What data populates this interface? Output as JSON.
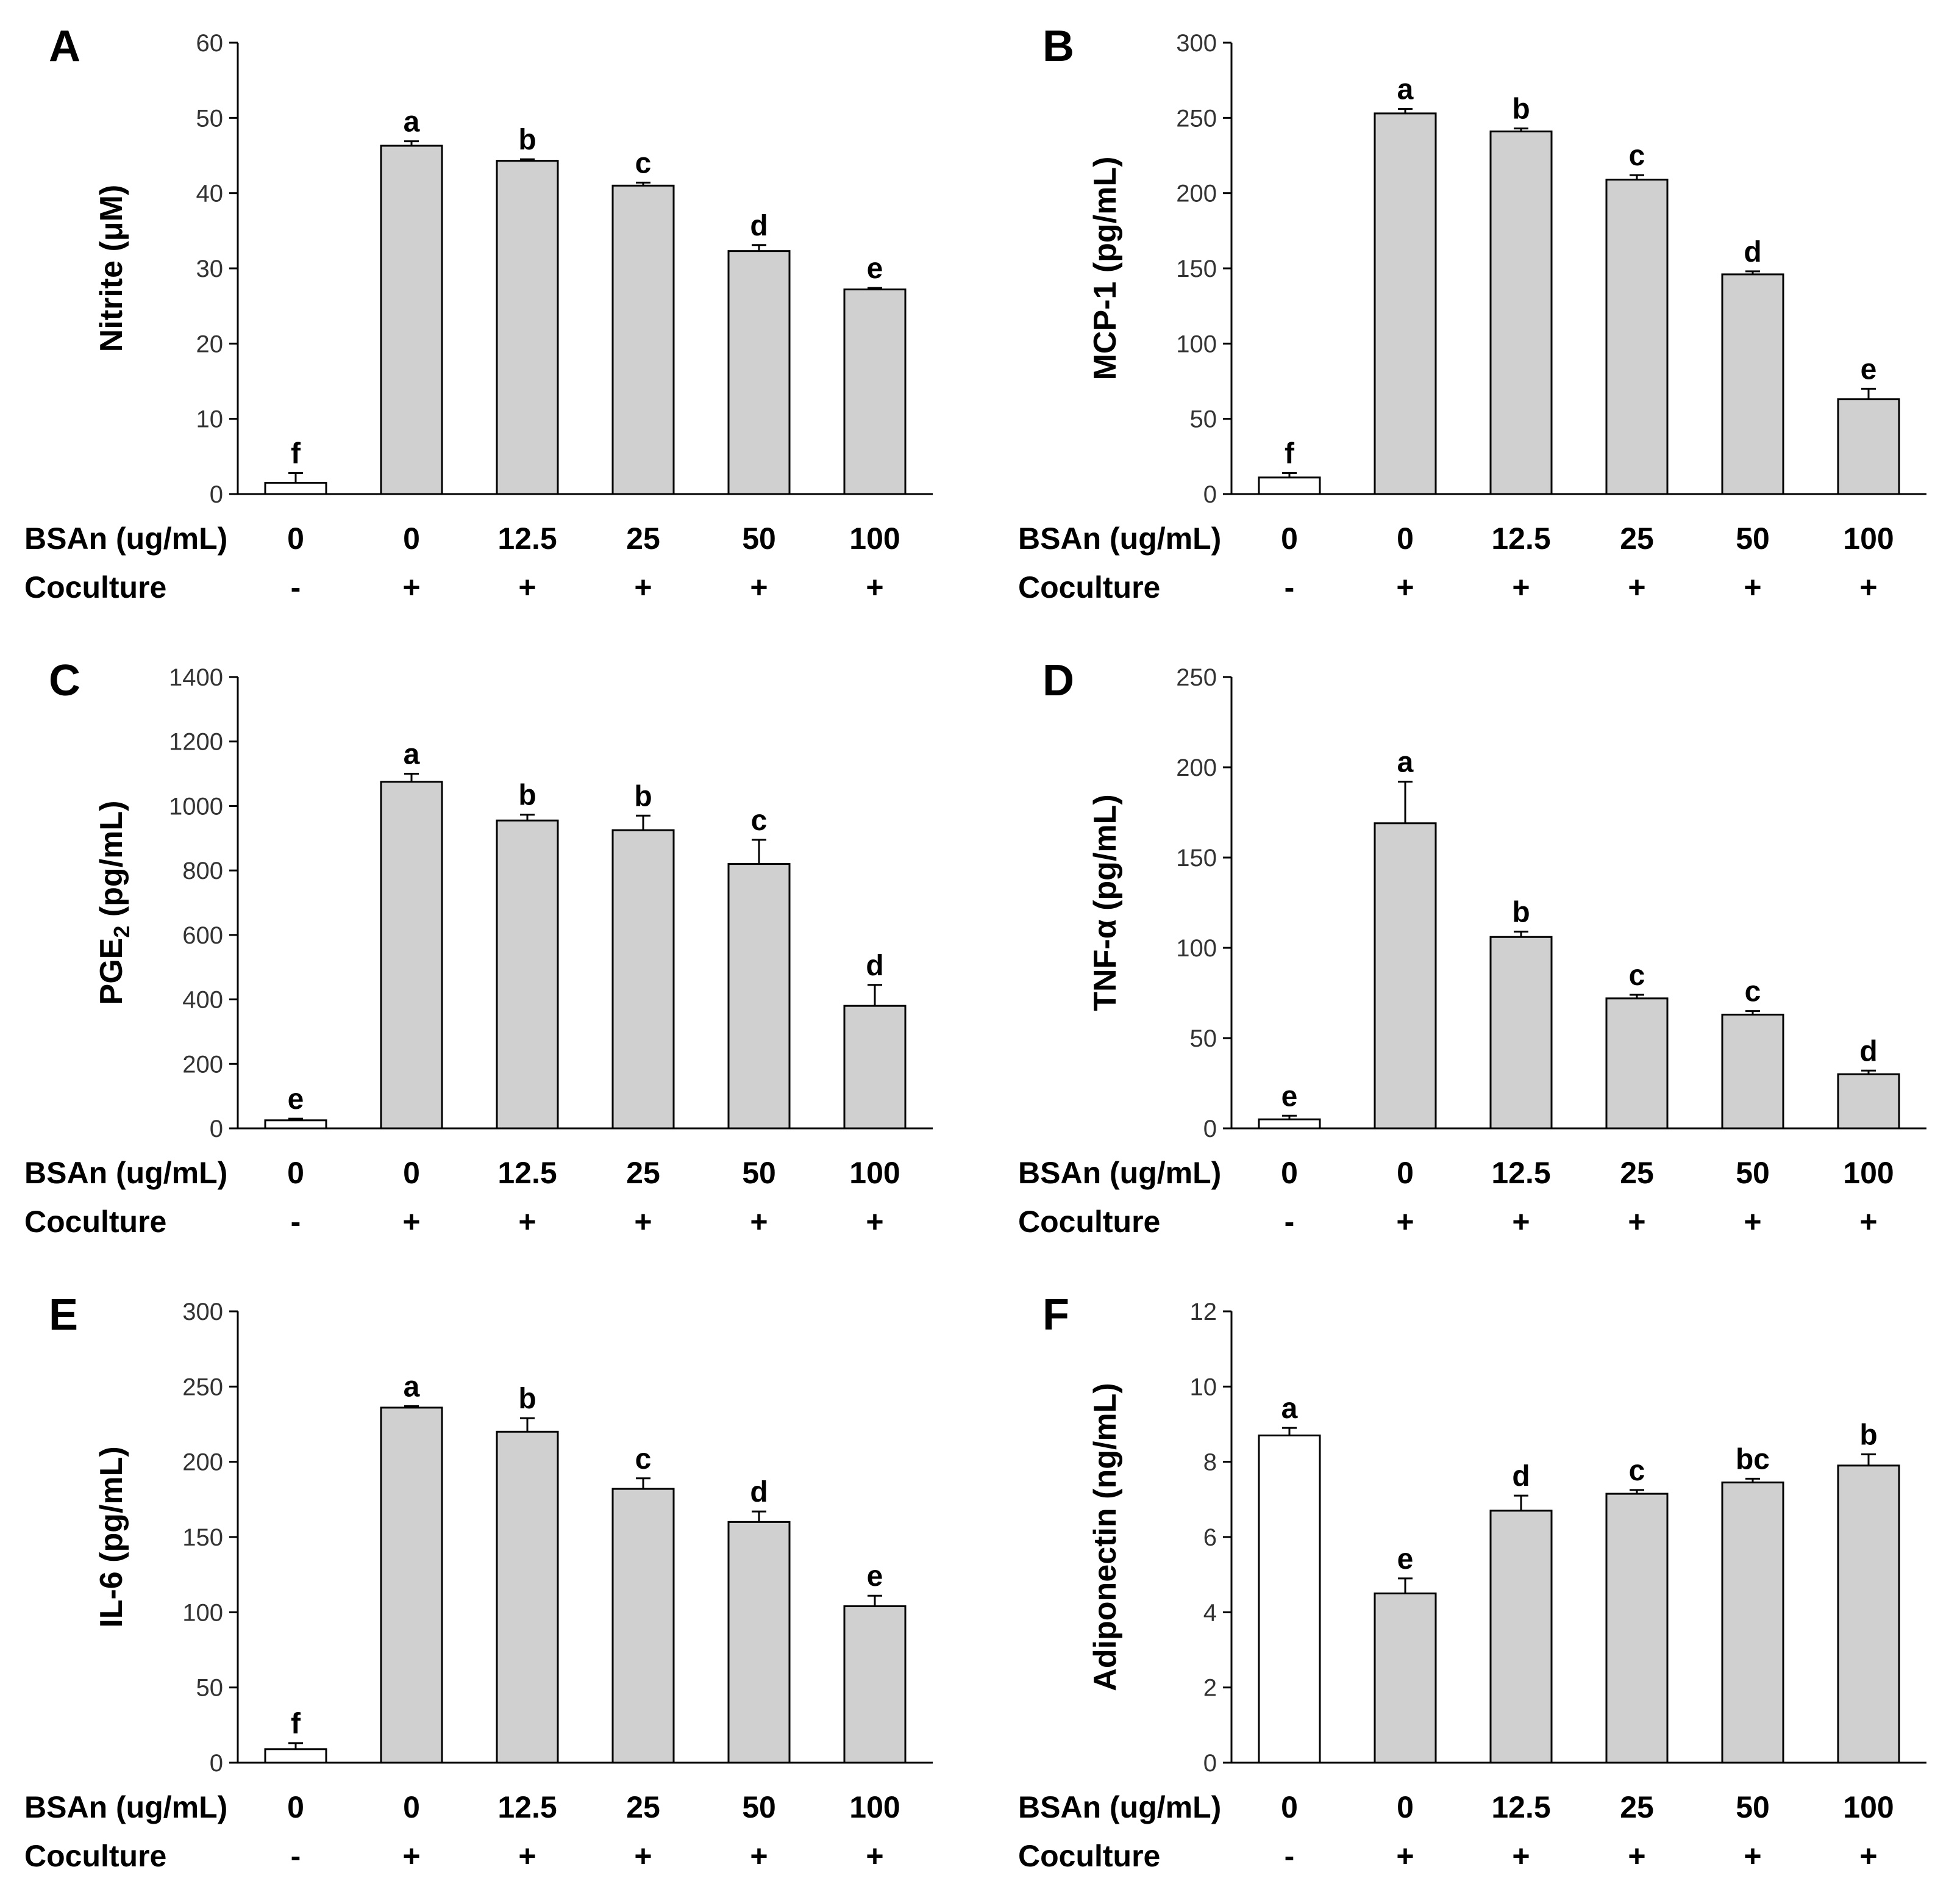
{
  "colors": {
    "control": "#ffffff",
    "treated": "#d0d0d0",
    "stroke": "#000000"
  },
  "chart_data": [
    {
      "type": "bar",
      "panel": "A",
      "ylabel": "Nitrite  (μM)",
      "ylim": [
        0,
        60
      ],
      "yticks": [
        "0",
        "10",
        "20",
        "30",
        "40",
        "50",
        "60"
      ],
      "row1_label": "BSAn (ug/mL)",
      "row2_label": "Coculture",
      "categories": [
        "0",
        "0",
        "12.5",
        "25",
        "50",
        "100"
      ],
      "coculture": [
        "-",
        "+",
        "+",
        "+",
        "+",
        "+"
      ],
      "values": [
        1.5,
        46.3,
        44.3,
        41.0,
        32.3,
        27.2
      ],
      "errors": [
        1.3,
        0.6,
        0.2,
        0.4,
        0.8,
        0.2
      ],
      "significance": [
        "f",
        "a",
        "b",
        "c",
        "d",
        "e"
      ],
      "colors": [
        "#ffffff",
        "#d0d0d0",
        "#d0d0d0",
        "#d0d0d0",
        "#d0d0d0",
        "#d0d0d0"
      ]
    },
    {
      "type": "bar",
      "panel": "B",
      "ylabel": "MCP-1 (pg/mL)",
      "ylim": [
        0,
        300
      ],
      "yticks": [
        "0",
        "50",
        "100",
        "150",
        "200",
        "250",
        "300"
      ],
      "row1_label": "BSAn (ug/mL)",
      "row2_label": "Coculture",
      "categories": [
        "0",
        "0",
        "12.5",
        "25",
        "50",
        "100"
      ],
      "coculture": [
        "-",
        "+",
        "+",
        "+",
        "+",
        "+"
      ],
      "values": [
        11,
        253,
        241,
        209,
        146,
        63
      ],
      "errors": [
        3,
        3,
        2,
        3,
        2,
        7
      ],
      "significance": [
        "f",
        "a",
        "b",
        "c",
        "d",
        "e"
      ],
      "colors": [
        "#ffffff",
        "#d0d0d0",
        "#d0d0d0",
        "#d0d0d0",
        "#d0d0d0",
        "#d0d0d0"
      ]
    },
    {
      "type": "bar",
      "panel": "C",
      "ylabel": "PGE",
      "ylabel_sub": "2",
      "ylabel_suffix": " (pg/mL)",
      "ylim": [
        0,
        1400
      ],
      "yticks": [
        "0",
        "200",
        "400",
        "600",
        "800",
        "1000",
        "1200",
        "1400"
      ],
      "row1_label": "BSAn (ug/mL)",
      "row2_label": "Coculture",
      "categories": [
        "0",
        "0",
        "12.5",
        "25",
        "50",
        "100"
      ],
      "coculture": [
        "-",
        "+",
        "+",
        "+",
        "+",
        "+"
      ],
      "values": [
        25,
        1075,
        955,
        925,
        820,
        380
      ],
      "errors": [
        5,
        25,
        18,
        45,
        75,
        65
      ],
      "significance": [
        "e",
        "a",
        "b",
        "b",
        "c",
        "d"
      ],
      "colors": [
        "#ffffff",
        "#d0d0d0",
        "#d0d0d0",
        "#d0d0d0",
        "#d0d0d0",
        "#d0d0d0"
      ]
    },
    {
      "type": "bar",
      "panel": "D",
      "ylabel": "TNF-α (pg/mL)",
      "ylim": [
        0,
        250
      ],
      "yticks": [
        "0",
        "50",
        "100",
        "150",
        "200",
        "250"
      ],
      "row1_label": "BSAn (ug/mL)",
      "row2_label": "Coculture",
      "categories": [
        "0",
        "0",
        "12.5",
        "25",
        "50",
        "100"
      ],
      "coculture": [
        "-",
        "+",
        "+",
        "+",
        "+",
        "+"
      ],
      "values": [
        5,
        169,
        106,
        72,
        63,
        30
      ],
      "errors": [
        2,
        23,
        3,
        2,
        2,
        2
      ],
      "significance": [
        "e",
        "a",
        "b",
        "c",
        "c",
        "d"
      ],
      "colors": [
        "#ffffff",
        "#d0d0d0",
        "#d0d0d0",
        "#d0d0d0",
        "#d0d0d0",
        "#d0d0d0"
      ]
    },
    {
      "type": "bar",
      "panel": "E",
      "ylabel": "IL-6 (pg/mL)",
      "ylim": [
        0,
        300
      ],
      "yticks": [
        "0",
        "50",
        "100",
        "150",
        "200",
        "250",
        "300"
      ],
      "row1_label": "BSAn (ug/mL)",
      "row2_label": "Coculture",
      "categories": [
        "0",
        "0",
        "12.5",
        "25",
        "50",
        "100"
      ],
      "coculture": [
        "-",
        "+",
        "+",
        "+",
        "+",
        "+"
      ],
      "values": [
        9,
        236,
        220,
        182,
        160,
        104
      ],
      "errors": [
        4,
        1,
        9,
        7,
        7,
        7
      ],
      "significance": [
        "f",
        "a",
        "b",
        "c",
        "d",
        "e"
      ],
      "colors": [
        "#ffffff",
        "#d0d0d0",
        "#d0d0d0",
        "#d0d0d0",
        "#d0d0d0",
        "#d0d0d0"
      ]
    },
    {
      "type": "bar",
      "panel": "F",
      "ylabel": "Adiponectin  (ng/mL)",
      "ylim": [
        0,
        12
      ],
      "yticks": [
        "0",
        "2",
        "4",
        "6",
        "8",
        "10",
        "12"
      ],
      "row1_label": "BSAn (ug/mL)",
      "row2_label": "Coculture",
      "categories": [
        "0",
        "0",
        "12.5",
        "25",
        "50",
        "100"
      ],
      "coculture": [
        "-",
        "+",
        "+",
        "+",
        "+",
        "+"
      ],
      "values": [
        8.7,
        4.5,
        6.7,
        7.15,
        7.45,
        7.9
      ],
      "errors": [
        0.2,
        0.4,
        0.4,
        0.1,
        0.1,
        0.3
      ],
      "significance": [
        "a",
        "e",
        "d",
        "c",
        "bc",
        "b"
      ],
      "colors": [
        "#ffffff",
        "#d0d0d0",
        "#d0d0d0",
        "#d0d0d0",
        "#d0d0d0",
        "#d0d0d0"
      ]
    }
  ]
}
